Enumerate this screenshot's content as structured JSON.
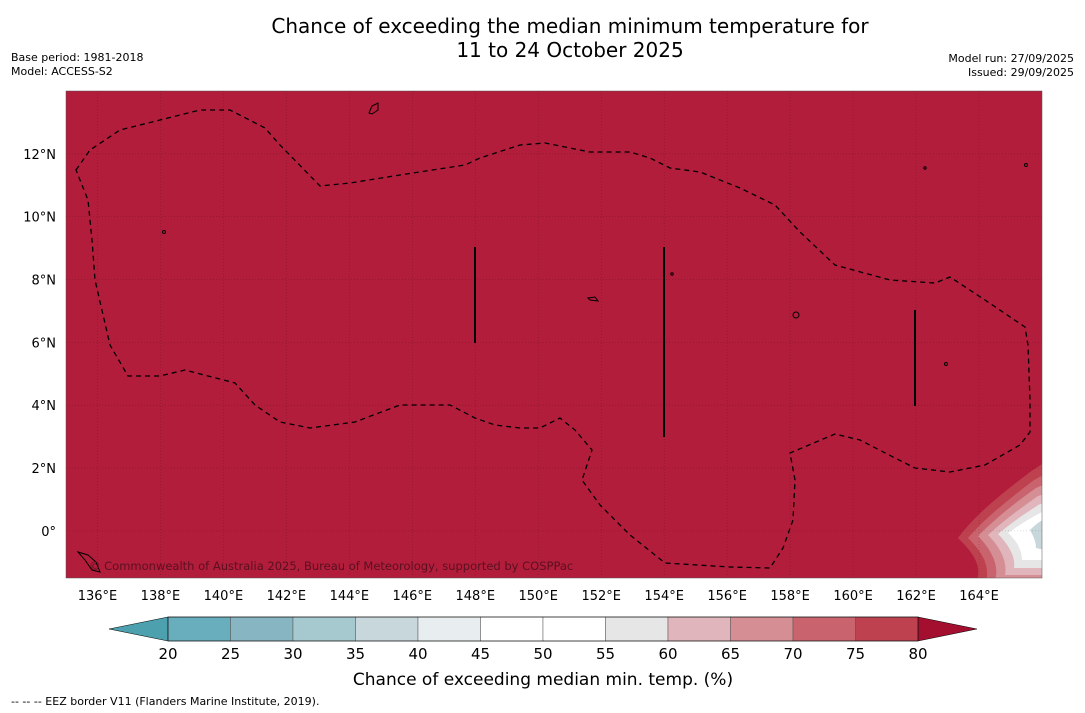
{
  "title": {
    "line1": "Chance of exceeding the median minimum temperature for",
    "line2": "11 to 24 October 2025"
  },
  "meta_left": {
    "base_period": "Base period: 1981-2018",
    "model": "Model: ACCESS-S2"
  },
  "meta_right": {
    "model_run": "Model run: 27/09/2025",
    "issued": "Issued: 29/09/2025"
  },
  "map": {
    "lon_labels": [
      "136°E",
      "138°E",
      "140°E",
      "142°E",
      "144°E",
      "146°E",
      "148°E",
      "150°E",
      "152°E",
      "154°E",
      "156°E",
      "158°E",
      "160°E",
      "162°E",
      "164°E"
    ],
    "lon_values": [
      136,
      138,
      140,
      142,
      144,
      146,
      148,
      150,
      152,
      154,
      156,
      158,
      160,
      162,
      164
    ],
    "lat_labels": [
      "12°N",
      "10°N",
      "8°N",
      "6°N",
      "4°N",
      "2°N",
      "0°"
    ],
    "lat_values": [
      12,
      10,
      8,
      6,
      4,
      2,
      0
    ],
    "lon_range": [
      135,
      166
    ],
    "lat_range": [
      -1.5,
      14
    ],
    "dominant_category": "80",
    "fill_color": "#b21d3b",
    "copyright": "© Commonwealth of Australia 2025, Bureau of Meteorology, supported by COSPPac"
  },
  "colorbar": {
    "label": "Chance of exceeding median min. temp. (%)",
    "ticks": [
      "20",
      "25",
      "30",
      "35",
      "40",
      "45",
      "50",
      "55",
      "60",
      "65",
      "70",
      "75",
      "80"
    ],
    "colors": [
      "#68aebc",
      "#87b6c2",
      "#a6c9cf",
      "#c7d7db",
      "#e8eef0",
      "#ffffff",
      "#ffffff",
      "#e6e6e6",
      "#e0b5bb",
      "#d68e95",
      "#c9636e",
      "#be414f"
    ],
    "under_color": "#4da0ad",
    "over_color": "#a40f30"
  },
  "footnote": "--  --  -- EEZ border V11 (Flanders Marine Institute, 2019)."
}
